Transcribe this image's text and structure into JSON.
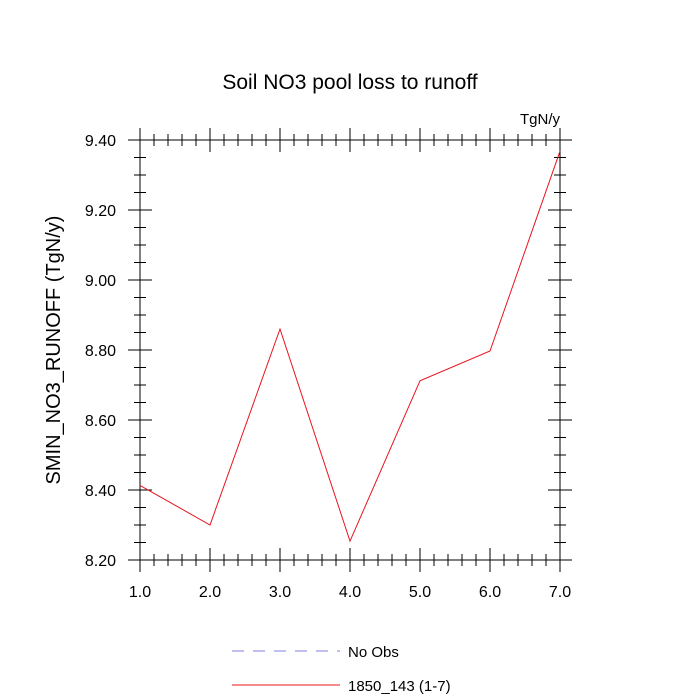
{
  "chart_data": {
    "type": "line",
    "title": "Soil NO3 pool loss to runoff",
    "units_label": "TgN/y",
    "ylabel": "SMIN_NO3_RUNOFF  (TgN/y)",
    "xlabel": "",
    "xlim": [
      1,
      7
    ],
    "ylim": [
      8.2,
      9.4
    ],
    "x_ticks": [
      1,
      2,
      3,
      4,
      5,
      6,
      7
    ],
    "x_tick_labels": [
      "1.0",
      "2.0",
      "3.0",
      "4.0",
      "5.0",
      "6.0",
      "7.0"
    ],
    "y_ticks": [
      8.2,
      8.4,
      8.6,
      8.8,
      9.0,
      9.2,
      9.4
    ],
    "y_tick_labels": [
      "8.20",
      "8.40",
      "8.60",
      "8.80",
      "9.00",
      "9.20",
      "9.40"
    ],
    "grid": false,
    "legend_position": "bottom",
    "series": [
      {
        "name": "1850_143 (1-7)",
        "color": "#e8141e",
        "dash": "solid",
        "x": [
          1,
          2,
          3,
          4,
          5,
          6,
          7
        ],
        "values": [
          8.413,
          8.3,
          8.86,
          8.254,
          8.712,
          8.797,
          9.368
        ]
      }
    ],
    "legend": [
      {
        "label": "No Obs",
        "color": "#8080e0",
        "dash": "dashed"
      },
      {
        "label": "1850_143 (1-7)",
        "color": "#e8141e",
        "dash": "solid"
      }
    ]
  }
}
